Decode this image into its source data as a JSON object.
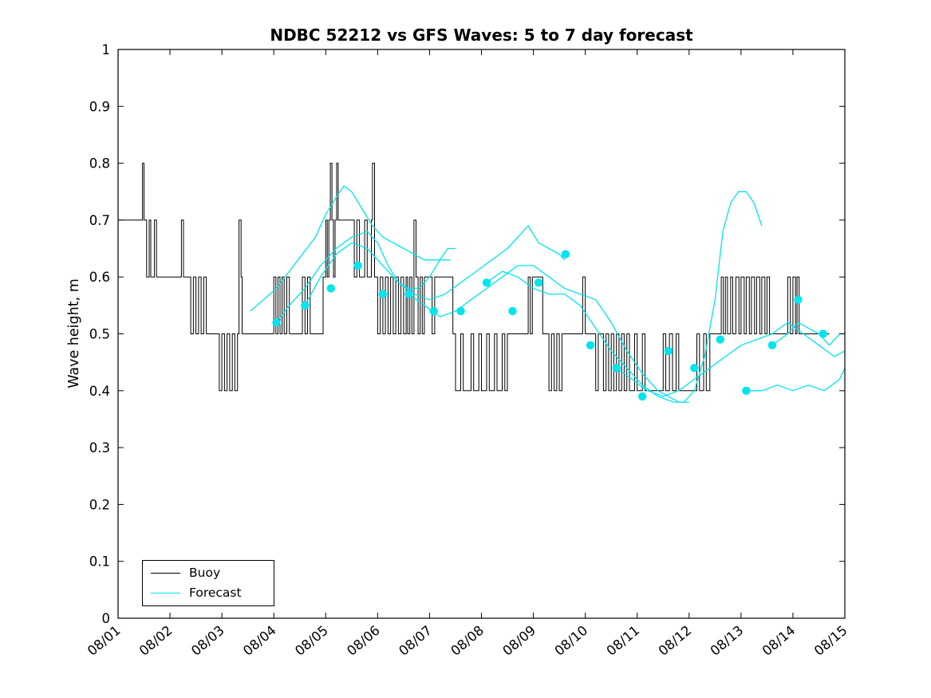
{
  "title": "NDBC 52212 vs GFS Waves: 5 to 7 day forecast",
  "chart_data": {
    "type": "line",
    "title": "NDBC 52212 vs GFS Waves: 5 to 7 day forecast",
    "xlabel": "",
    "ylabel": "Wave height, m",
    "ylim": [
      0,
      1
    ],
    "xlim_days": [
      0,
      14
    ],
    "grid": false,
    "y_tick_labels": [
      "0",
      "0.1",
      "0.2",
      "0.3",
      "0.4",
      "0.5",
      "0.6",
      "0.7",
      "0.8",
      "0.9",
      "1"
    ],
    "x_tick_labels": [
      "08/01",
      "08/02",
      "08/03",
      "08/04",
      "08/05",
      "08/06",
      "08/07",
      "08/08",
      "08/09",
      "08/10",
      "08/11",
      "08/12",
      "08/13",
      "08/14",
      "08/15"
    ],
    "colors": {
      "buoy": "#000000",
      "forecast": "#00e5ee"
    },
    "legend": {
      "position": "southwest",
      "items": [
        {
          "label": "Buoy",
          "series": "buoy"
        },
        {
          "label": "Forecast",
          "series": "forecast"
        }
      ]
    },
    "buoy": {
      "name": "Buoy",
      "style": "step",
      "points": [
        [
          0.0,
          0.7
        ],
        [
          0.47,
          0.8
        ],
        [
          0.5,
          0.7
        ],
        [
          0.55,
          0.6
        ],
        [
          0.6,
          0.7
        ],
        [
          0.63,
          0.6
        ],
        [
          0.7,
          0.7
        ],
        [
          0.74,
          0.6
        ],
        [
          1.22,
          0.7
        ],
        [
          1.26,
          0.6
        ],
        [
          1.4,
          0.5
        ],
        [
          1.45,
          0.6
        ],
        [
          1.5,
          0.5
        ],
        [
          1.55,
          0.6
        ],
        [
          1.6,
          0.5
        ],
        [
          1.65,
          0.6
        ],
        [
          1.7,
          0.5
        ],
        [
          1.95,
          0.4
        ],
        [
          2.0,
          0.5
        ],
        [
          2.05,
          0.4
        ],
        [
          2.1,
          0.5
        ],
        [
          2.15,
          0.4
        ],
        [
          2.2,
          0.5
        ],
        [
          2.25,
          0.4
        ],
        [
          2.3,
          0.5
        ],
        [
          2.33,
          0.7
        ],
        [
          2.37,
          0.6
        ],
        [
          2.39,
          0.5
        ],
        [
          3.0,
          0.6
        ],
        [
          3.04,
          0.5
        ],
        [
          3.08,
          0.6
        ],
        [
          3.12,
          0.5
        ],
        [
          3.16,
          0.6
        ],
        [
          3.2,
          0.5
        ],
        [
          3.25,
          0.6
        ],
        [
          3.3,
          0.5
        ],
        [
          3.55,
          0.6
        ],
        [
          3.6,
          0.5
        ],
        [
          3.65,
          0.6
        ],
        [
          3.7,
          0.5
        ],
        [
          3.95,
          0.6
        ],
        [
          4.0,
          0.7
        ],
        [
          4.03,
          0.6
        ],
        [
          4.06,
          0.7
        ],
        [
          4.09,
          0.8
        ],
        [
          4.12,
          0.7
        ],
        [
          4.15,
          0.6
        ],
        [
          4.18,
          0.7
        ],
        [
          4.21,
          0.8
        ],
        [
          4.24,
          0.7
        ],
        [
          4.55,
          0.6
        ],
        [
          4.6,
          0.7
        ],
        [
          4.65,
          0.6
        ],
        [
          4.75,
          0.7
        ],
        [
          4.8,
          0.6
        ],
        [
          4.88,
          0.7
        ],
        [
          4.9,
          0.8
        ],
        [
          4.94,
          0.6
        ],
        [
          5.0,
          0.5
        ],
        [
          5.05,
          0.6
        ],
        [
          5.1,
          0.5
        ],
        [
          5.15,
          0.6
        ],
        [
          5.2,
          0.5
        ],
        [
          5.25,
          0.6
        ],
        [
          5.3,
          0.5
        ],
        [
          5.35,
          0.6
        ],
        [
          5.4,
          0.5
        ],
        [
          5.45,
          0.6
        ],
        [
          5.5,
          0.5
        ],
        [
          5.55,
          0.6
        ],
        [
          5.58,
          0.5
        ],
        [
          5.62,
          0.6
        ],
        [
          5.66,
          0.5
        ],
        [
          5.7,
          0.7
        ],
        [
          5.74,
          0.6
        ],
        [
          5.78,
          0.5
        ],
        [
          5.82,
          0.6
        ],
        [
          5.86,
          0.5
        ],
        [
          5.9,
          0.6
        ],
        [
          6.05,
          0.5
        ],
        [
          6.1,
          0.6
        ],
        [
          6.45,
          0.5
        ],
        [
          6.5,
          0.4
        ],
        [
          6.6,
          0.5
        ],
        [
          6.65,
          0.4
        ],
        [
          6.8,
          0.5
        ],
        [
          6.85,
          0.4
        ],
        [
          6.95,
          0.5
        ],
        [
          7.0,
          0.4
        ],
        [
          7.1,
          0.5
        ],
        [
          7.15,
          0.4
        ],
        [
          7.25,
          0.5
        ],
        [
          7.3,
          0.4
        ],
        [
          7.4,
          0.5
        ],
        [
          7.45,
          0.4
        ],
        [
          7.5,
          0.5
        ],
        [
          7.9,
          0.6
        ],
        [
          7.94,
          0.5
        ],
        [
          7.98,
          0.6
        ],
        [
          8.18,
          0.5
        ],
        [
          8.3,
          0.4
        ],
        [
          8.35,
          0.5
        ],
        [
          8.4,
          0.4
        ],
        [
          8.45,
          0.5
        ],
        [
          8.5,
          0.4
        ],
        [
          8.55,
          0.5
        ],
        [
          8.95,
          0.6
        ],
        [
          9.0,
          0.5
        ],
        [
          9.2,
          0.4
        ],
        [
          9.25,
          0.5
        ],
        [
          9.35,
          0.4
        ],
        [
          9.4,
          0.5
        ],
        [
          9.45,
          0.4
        ],
        [
          9.5,
          0.5
        ],
        [
          9.55,
          0.4
        ],
        [
          9.6,
          0.5
        ],
        [
          9.65,
          0.4
        ],
        [
          9.7,
          0.5
        ],
        [
          9.75,
          0.4
        ],
        [
          9.8,
          0.5
        ],
        [
          9.85,
          0.4
        ],
        [
          9.95,
          0.5
        ],
        [
          10.0,
          0.4
        ],
        [
          10.1,
          0.5
        ],
        [
          10.15,
          0.4
        ],
        [
          10.5,
          0.5
        ],
        [
          10.55,
          0.4
        ],
        [
          10.62,
          0.5
        ],
        [
          10.68,
          0.4
        ],
        [
          10.75,
          0.5
        ],
        [
          10.8,
          0.4
        ],
        [
          11.15,
          0.5
        ],
        [
          11.2,
          0.4
        ],
        [
          11.28,
          0.5
        ],
        [
          11.33,
          0.4
        ],
        [
          11.4,
          0.5
        ],
        [
          11.62,
          0.6
        ],
        [
          11.66,
          0.5
        ],
        [
          11.7,
          0.6
        ],
        [
          11.74,
          0.5
        ],
        [
          11.8,
          0.6
        ],
        [
          11.84,
          0.5
        ],
        [
          11.9,
          0.6
        ],
        [
          11.96,
          0.5
        ],
        [
          12.0,
          0.6
        ],
        [
          12.06,
          0.5
        ],
        [
          12.1,
          0.6
        ],
        [
          12.16,
          0.5
        ],
        [
          12.2,
          0.6
        ],
        [
          12.26,
          0.5
        ],
        [
          12.3,
          0.6
        ],
        [
          12.36,
          0.5
        ],
        [
          12.4,
          0.6
        ],
        [
          12.46,
          0.5
        ],
        [
          12.5,
          0.6
        ],
        [
          12.55,
          0.5
        ],
        [
          12.9,
          0.6
        ],
        [
          12.95,
          0.5
        ],
        [
          13.0,
          0.6
        ],
        [
          13.05,
          0.5
        ],
        [
          13.08,
          0.6
        ],
        [
          13.12,
          0.5
        ],
        [
          13.7,
          0.5
        ]
      ]
    },
    "forecast_runs": [
      {
        "points": [
          [
            2.55,
            0.54
          ],
          [
            2.8,
            0.56
          ],
          [
            3.05,
            0.58
          ],
          [
            3.3,
            0.61
          ],
          [
            3.55,
            0.64
          ],
          [
            3.8,
            0.67
          ],
          [
            4.0,
            0.71
          ],
          [
            4.2,
            0.74
          ],
          [
            4.35,
            0.76
          ],
          [
            4.5,
            0.75
          ],
          [
            4.7,
            0.72
          ],
          [
            4.9,
            0.69
          ],
          [
            5.1,
            0.67
          ],
          [
            5.3,
            0.66
          ],
          [
            5.5,
            0.65
          ],
          [
            5.7,
            0.64
          ],
          [
            5.9,
            0.63
          ],
          [
            6.1,
            0.63
          ],
          [
            6.4,
            0.63
          ]
        ]
      },
      {
        "points": [
          [
            3.05,
            0.52
          ],
          [
            3.3,
            0.55
          ],
          [
            3.6,
            0.58
          ],
          [
            3.9,
            0.62
          ],
          [
            4.2,
            0.65
          ],
          [
            4.5,
            0.67
          ],
          [
            4.8,
            0.68
          ],
          [
            5.0,
            0.66
          ],
          [
            5.2,
            0.62
          ],
          [
            5.4,
            0.59
          ],
          [
            5.6,
            0.58
          ],
          [
            5.8,
            0.58
          ],
          [
            6.0,
            0.6
          ],
          [
            6.2,
            0.63
          ],
          [
            6.35,
            0.65
          ],
          [
            6.5,
            0.65
          ]
        ]
      },
      {
        "points": [
          [
            3.6,
            0.55
          ],
          [
            3.9,
            0.6
          ],
          [
            4.2,
            0.64
          ],
          [
            4.5,
            0.66
          ],
          [
            4.8,
            0.65
          ],
          [
            5.1,
            0.62
          ],
          [
            5.4,
            0.59
          ],
          [
            5.7,
            0.57
          ],
          [
            6.0,
            0.56
          ],
          [
            6.3,
            0.57
          ],
          [
            6.6,
            0.59
          ],
          [
            6.9,
            0.61
          ],
          [
            7.2,
            0.63
          ],
          [
            7.5,
            0.65
          ],
          [
            7.8,
            0.68
          ],
          [
            7.9,
            0.69
          ],
          [
            8.1,
            0.66
          ],
          [
            8.3,
            0.65
          ],
          [
            8.5,
            0.64
          ],
          [
            8.6,
            0.63
          ]
        ]
      },
      {
        "points": [
          [
            5.6,
            0.57
          ],
          [
            5.9,
            0.55
          ],
          [
            6.2,
            0.53
          ],
          [
            6.5,
            0.54
          ],
          [
            6.8,
            0.56
          ],
          [
            7.1,
            0.58
          ],
          [
            7.4,
            0.6
          ],
          [
            7.7,
            0.62
          ],
          [
            8.0,
            0.62
          ],
          [
            8.3,
            0.6
          ],
          [
            8.6,
            0.58
          ],
          [
            8.9,
            0.57
          ],
          [
            9.2,
            0.56
          ],
          [
            9.5,
            0.52
          ],
          [
            9.8,
            0.47
          ],
          [
            10.1,
            0.43
          ],
          [
            10.4,
            0.4
          ],
          [
            10.6,
            0.39
          ],
          [
            10.8,
            0.38
          ],
          [
            11.0,
            0.38
          ]
        ]
      },
      {
        "points": [
          [
            7.1,
            0.59
          ],
          [
            7.4,
            0.61
          ],
          [
            7.7,
            0.6
          ],
          [
            8.0,
            0.58
          ],
          [
            8.3,
            0.57
          ],
          [
            8.6,
            0.57
          ],
          [
            8.9,
            0.55
          ],
          [
            9.2,
            0.51
          ],
          [
            9.5,
            0.47
          ],
          [
            9.8,
            0.44
          ],
          [
            10.1,
            0.41
          ],
          [
            10.4,
            0.39
          ],
          [
            10.7,
            0.38
          ],
          [
            10.9,
            0.38
          ],
          [
            11.1,
            0.4
          ],
          [
            11.3,
            0.46
          ],
          [
            11.5,
            0.56
          ],
          [
            11.65,
            0.68
          ],
          [
            11.8,
            0.73
          ],
          [
            11.95,
            0.75
          ],
          [
            12.1,
            0.75
          ],
          [
            12.25,
            0.73
          ],
          [
            12.4,
            0.69
          ]
        ]
      },
      {
        "points": [
          [
            9.6,
            0.44
          ],
          [
            9.9,
            0.42
          ],
          [
            10.2,
            0.4
          ],
          [
            10.5,
            0.39
          ],
          [
            10.8,
            0.4
          ],
          [
            11.1,
            0.42
          ],
          [
            11.4,
            0.44
          ],
          [
            11.7,
            0.46
          ],
          [
            12.0,
            0.48
          ],
          [
            12.3,
            0.49
          ],
          [
            12.6,
            0.5
          ],
          [
            12.9,
            0.52
          ],
          [
            13.2,
            0.5
          ],
          [
            13.5,
            0.48
          ],
          [
            13.8,
            0.46
          ],
          [
            14.0,
            0.47
          ]
        ]
      },
      {
        "points": [
          [
            12.1,
            0.4
          ],
          [
            12.4,
            0.4
          ],
          [
            12.7,
            0.41
          ],
          [
            13.0,
            0.4
          ],
          [
            13.3,
            0.41
          ],
          [
            13.6,
            0.4
          ],
          [
            13.9,
            0.42
          ],
          [
            14.0,
            0.44
          ]
        ]
      },
      {
        "points": [
          [
            12.6,
            0.48
          ],
          [
            12.9,
            0.5
          ],
          [
            13.1,
            0.52
          ],
          [
            13.3,
            0.51
          ],
          [
            13.5,
            0.5
          ],
          [
            13.7,
            0.48
          ],
          [
            13.9,
            0.5
          ],
          [
            14.0,
            0.5
          ]
        ]
      }
    ],
    "forecast_markers": [
      [
        3.05,
        0.52
      ],
      [
        3.6,
        0.55
      ],
      [
        4.1,
        0.58
      ],
      [
        4.62,
        0.62
      ],
      [
        5.1,
        0.57
      ],
      [
        5.6,
        0.57
      ],
      [
        6.08,
        0.54
      ],
      [
        6.6,
        0.54
      ],
      [
        7.1,
        0.59
      ],
      [
        7.6,
        0.54
      ],
      [
        8.1,
        0.59
      ],
      [
        8.62,
        0.64
      ],
      [
        9.1,
        0.48
      ],
      [
        9.6,
        0.44
      ],
      [
        10.1,
        0.39
      ],
      [
        10.6,
        0.47
      ],
      [
        11.1,
        0.44
      ],
      [
        11.6,
        0.49
      ],
      [
        12.1,
        0.4
      ],
      [
        12.6,
        0.48
      ],
      [
        13.1,
        0.56
      ],
      [
        13.58,
        0.5
      ]
    ]
  }
}
